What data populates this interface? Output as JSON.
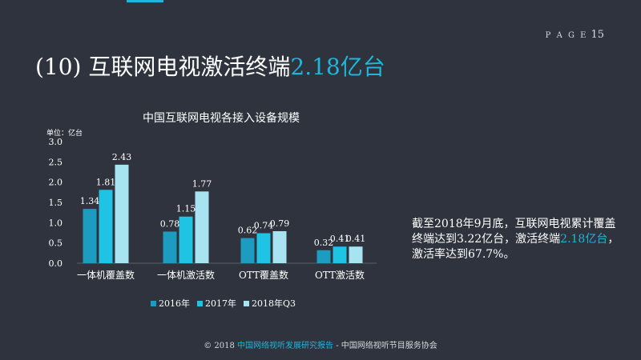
{
  "header": {
    "page_word": "P A G E",
    "page_number": "15",
    "title_main": "(10) 互联网电视激活终端",
    "title_highlight": "2.18亿台"
  },
  "colors": {
    "background": "#2e333d",
    "accent": "#1fb6d9",
    "series_2016": "#1b9cc0",
    "series_2017": "#1fc3e4",
    "series_2018q3": "#a8e3f2"
  },
  "chart_data": {
    "type": "bar",
    "title": "中国互联网电视各接入设备规模",
    "unit_label": "单位：亿台",
    "categories": [
      "一体机覆盖数",
      "一体机激活数",
      "OTT覆盖数",
      "OTT激活数"
    ],
    "series": [
      {
        "name": "2016年",
        "values": [
          1.34,
          0.78,
          0.62,
          0.32
        ],
        "labels": [
          "1.34",
          "0.78",
          "0.62",
          "0.32"
        ]
      },
      {
        "name": "2017年",
        "values": [
          1.81,
          1.15,
          0.74,
          0.41
        ],
        "labels": [
          "1.81",
          "1.15",
          "0.74",
          "0.41"
        ]
      },
      {
        "name": "2018年Q3",
        "values": [
          2.43,
          1.77,
          0.79,
          0.41
        ],
        "labels": [
          "2.43",
          "1.77",
          "0.79",
          "0.41"
        ]
      }
    ],
    "ylim": [
      0,
      3
    ],
    "yticks": [
      "0.0",
      "0.5",
      "1.0",
      "1.5",
      "2.0",
      "2.5",
      "3.0"
    ],
    "grid": false,
    "legend_position": "bottom"
  },
  "side_note": {
    "text_before": "截至2018年9月底，互联网电视累计覆盖终端达到3.22亿台，激活终端",
    "highlight": "2.18亿台",
    "text_after": "，激活率达到67.7%。"
  },
  "footer": {
    "prefix": "© 2018",
    "source": "中国网络视听发展研究报告",
    "suffix": " - 中国网络视听节目服务协会"
  }
}
